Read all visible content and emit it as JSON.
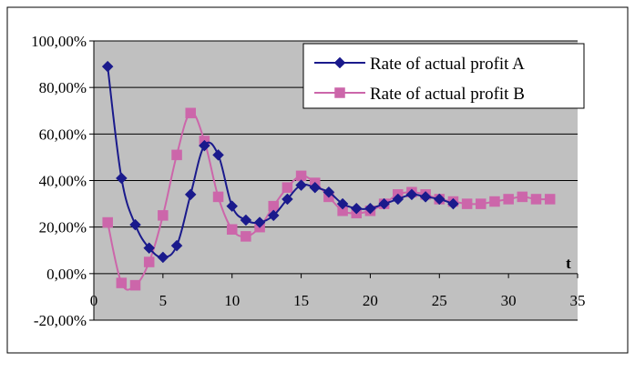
{
  "chart_data": {
    "type": "line",
    "title": "",
    "xlabel": "t",
    "ylabel": "",
    "xlim": [
      0,
      35
    ],
    "ylim": [
      -20,
      100
    ],
    "x_ticks": [
      0,
      5,
      10,
      15,
      20,
      25,
      30,
      35
    ],
    "x_tick_labels": [
      "0",
      "5",
      "10",
      "15",
      "20",
      "25",
      "30",
      "35"
    ],
    "y_ticks": [
      -20,
      0,
      20,
      40,
      60,
      80,
      100
    ],
    "y_tick_labels": [
      "-20,00%",
      "0,00%",
      "20,00%",
      "40,00%",
      "60,00%",
      "80,00%",
      "100,00%"
    ],
    "grid": "horizontal",
    "legend_position": "top-right",
    "series": [
      {
        "name": "Rate of actual profit A",
        "color": "#1a1a8c",
        "marker": "diamond",
        "x": [
          1,
          2,
          3,
          4,
          5,
          6,
          7,
          8,
          9,
          10,
          11,
          12,
          13,
          14,
          15,
          16,
          17,
          18,
          19,
          20,
          21,
          22,
          23,
          24,
          25,
          26
        ],
        "values": [
          89,
          41,
          21,
          11,
          7,
          12,
          34,
          55,
          51,
          29,
          23,
          22,
          25,
          32,
          38,
          37,
          35,
          30,
          28,
          28,
          30,
          32,
          34,
          33,
          32,
          30
        ]
      },
      {
        "name": "Rate of actual profit B",
        "color": "#cc66aa",
        "marker": "square",
        "x": [
          1,
          2,
          3,
          4,
          5,
          6,
          7,
          8,
          9,
          10,
          11,
          12,
          13,
          14,
          15,
          16,
          17,
          18,
          19,
          20,
          21,
          22,
          23,
          24,
          25,
          26,
          27,
          28,
          29,
          30,
          31,
          32,
          33
        ],
        "values": [
          22,
          -4,
          -5,
          5,
          25,
          51,
          69,
          57,
          33,
          19,
          16,
          20,
          29,
          37,
          42,
          39,
          33,
          27,
          26,
          27,
          30,
          34,
          35,
          34,
          32,
          31,
          30,
          30,
          31,
          32,
          33,
          32,
          32
        ]
      }
    ]
  }
}
